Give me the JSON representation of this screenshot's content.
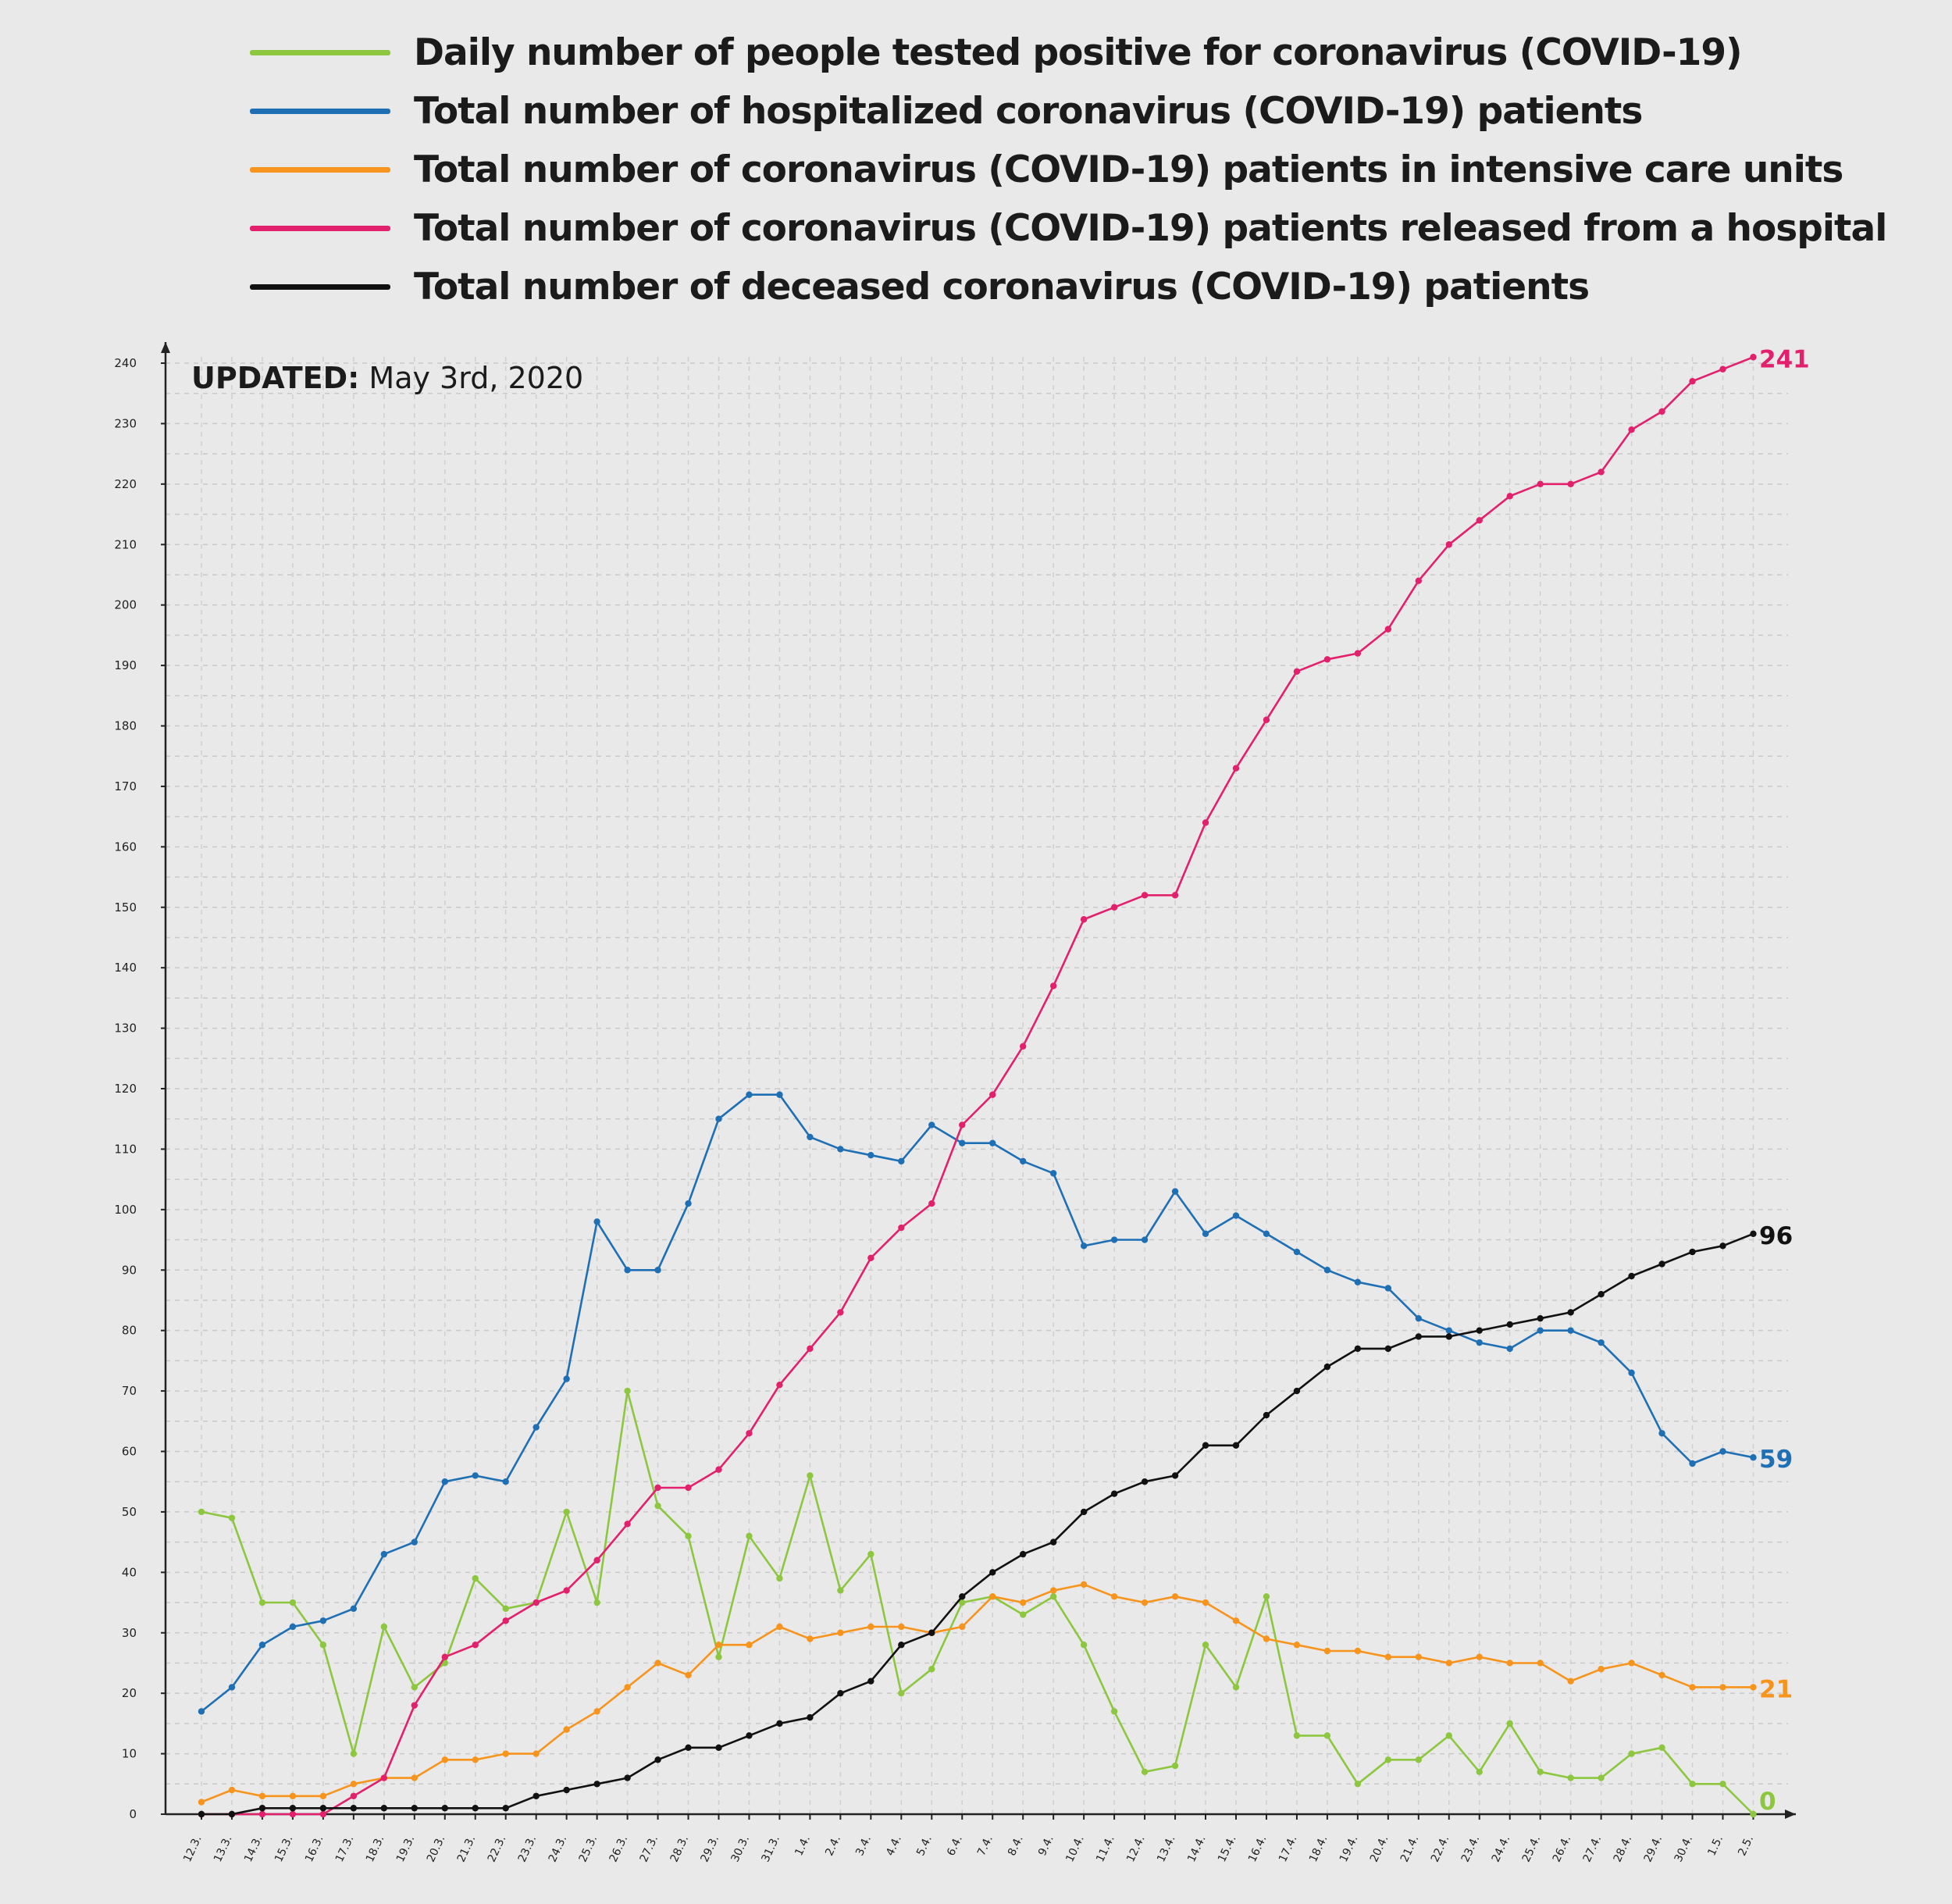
{
  "legend": [
    {
      "label": "Daily number of people tested positive for coronavirus (COVID-19)",
      "color": "#8dc63f"
    },
    {
      "label": "Total number of hospitalized coronavirus (COVID-19) patients",
      "color": "#1f6fb5"
    },
    {
      "label": "Total number of coronavirus (COVID-19) patients in intensive care units",
      "color": "#f7941d"
    },
    {
      "label": "Total number of coronavirus (COVID-19) patients released from a hospital",
      "color": "#e3206c"
    },
    {
      "label": "Total number of deceased coronavirus (COVID-19) patients",
      "color": "#111111"
    }
  ],
  "updated": {
    "label": "UPDATED:",
    "date": "May 3rd, 2020"
  },
  "chart_data": {
    "type": "line",
    "title": "",
    "xlabel": "",
    "ylabel": "",
    "ylim": [
      0,
      240
    ],
    "yticks": [
      0,
      10,
      20,
      30,
      40,
      50,
      60,
      70,
      80,
      90,
      100,
      110,
      120,
      130,
      140,
      150,
      160,
      170,
      180,
      190,
      200,
      210,
      220,
      230,
      240
    ],
    "grid": true,
    "categories": [
      "12.3.",
      "13.3.",
      "14.3.",
      "15.3.",
      "16.3.",
      "17.3.",
      "18.3.",
      "19.3.",
      "20.3.",
      "21.3.",
      "22.3.",
      "23.3.",
      "24.3.",
      "25.3.",
      "26.3.",
      "27.3.",
      "28.3.",
      "29.3.",
      "30.3.",
      "31.3.",
      "1.4.",
      "2.4.",
      "3.4.",
      "4.4.",
      "5.4.",
      "6.4.",
      "7.4.",
      "8.4.",
      "9.4.",
      "10.4.",
      "11.4.",
      "12.4.",
      "13.4.",
      "14.4.",
      "15.4.",
      "16.4.",
      "17.4.",
      "18.4.",
      "19.4.",
      "20.4.",
      "21.4.",
      "22.4.",
      "23.4.",
      "24.4.",
      "25.4.",
      "26.4.",
      "27.4.",
      "28.4.",
      "29.4.",
      "30.4.",
      "1.5.",
      "2.5."
    ],
    "series": [
      {
        "name": "Daily number of people tested positive for coronavirus (COVID-19)",
        "color": "#8dc63f",
        "values": [
          50,
          49,
          35,
          35,
          28,
          10,
          31,
          21,
          25,
          39,
          34,
          35,
          50,
          35,
          70,
          51,
          46,
          26,
          46,
          39,
          56,
          37,
          43,
          20,
          24,
          35,
          36,
          33,
          36,
          28,
          17,
          7,
          8,
          28,
          21,
          36,
          13,
          13,
          5,
          9,
          9,
          13,
          7,
          15,
          7,
          6,
          6,
          10,
          11,
          5,
          5,
          0
        ],
        "end_label": "0"
      },
      {
        "name": "Total number of hospitalized coronavirus (COVID-19) patients",
        "color": "#1f6fb5",
        "values": [
          17,
          21,
          28,
          31,
          32,
          34,
          43,
          45,
          55,
          56,
          55,
          64,
          72,
          98,
          90,
          90,
          101,
          115,
          119,
          119,
          112,
          110,
          109,
          108,
          114,
          111,
          111,
          108,
          106,
          94,
          95,
          95,
          103,
          96,
          99,
          96,
          93,
          90,
          88,
          87,
          82,
          80,
          78,
          77,
          80,
          80,
          78,
          73,
          63,
          58,
          60,
          59
        ],
        "end_label": "59"
      },
      {
        "name": "Total number of coronavirus (COVID-19) patients in intensive care units",
        "color": "#f7941d",
        "values": [
          2,
          4,
          3,
          3,
          3,
          5,
          6,
          6,
          9,
          9,
          10,
          10,
          14,
          17,
          21,
          25,
          23,
          28,
          28,
          31,
          29,
          30,
          31,
          31,
          30,
          31,
          36,
          35,
          37,
          38,
          36,
          35,
          36,
          35,
          32,
          29,
          28,
          27,
          27,
          26,
          26,
          25,
          26,
          25,
          25,
          22,
          24,
          25,
          23,
          21,
          21,
          21
        ],
        "end_label": "21"
      },
      {
        "name": "Total number of coronavirus (COVID-19) patients released from a hospital",
        "color": "#e3206c",
        "values": [
          0,
          0,
          0,
          0,
          0,
          3,
          6,
          18,
          26,
          28,
          32,
          35,
          37,
          42,
          48,
          54,
          54,
          57,
          63,
          71,
          77,
          83,
          92,
          97,
          101,
          114,
          119,
          127,
          137,
          148,
          150,
          152,
          152,
          164,
          173,
          181,
          189,
          191,
          192,
          196,
          204,
          210,
          214,
          218,
          220,
          220,
          222,
          229,
          232,
          237,
          239,
          241
        ],
        "end_label": "241"
      },
      {
        "name": "Total number of deceased coronavirus (COVID-19) patients",
        "color": "#111111",
        "values": [
          0,
          0,
          1,
          1,
          1,
          1,
          1,
          1,
          1,
          1,
          1,
          3,
          4,
          5,
          6,
          9,
          11,
          11,
          13,
          15,
          16,
          20,
          22,
          28,
          30,
          36,
          40,
          43,
          45,
          50,
          53,
          55,
          56,
          61,
          61,
          66,
          70,
          74,
          77,
          77,
          79,
          79,
          80,
          81,
          82,
          83,
          86,
          89,
          91,
          93,
          94,
          96
        ],
        "end_label": "96"
      }
    ]
  }
}
